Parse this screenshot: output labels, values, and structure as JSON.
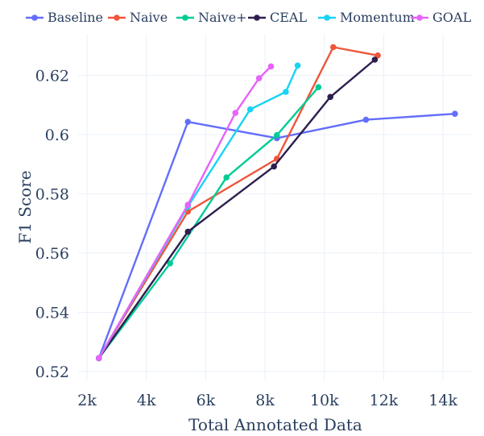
{
  "chart_data": {
    "type": "line",
    "title": "",
    "xlabel": "Total Annotated Data",
    "ylabel": "F1 Score",
    "xlim": [
      1700,
      15000
    ],
    "ylim": [
      0.517,
      0.634
    ],
    "x_ticks": [
      2000,
      4000,
      6000,
      8000,
      10000,
      12000,
      14000
    ],
    "x_tick_labels": [
      "2k",
      "4k",
      "6k",
      "8k",
      "10k",
      "12k",
      "14k"
    ],
    "y_ticks": [
      0.52,
      0.54,
      0.56,
      0.58,
      0.6,
      0.62
    ],
    "y_tick_labels": [
      "0.52",
      "0.54",
      "0.56",
      "0.58",
      "0.6",
      "0.62"
    ],
    "grid": true,
    "legend_position": "top",
    "series": [
      {
        "name": "Baseline",
        "color": "#636efa",
        "points": [
          [
            2400,
            0.5245
          ],
          [
            5400,
            0.6043
          ],
          [
            8400,
            0.5988
          ],
          [
            11400,
            0.605
          ],
          [
            14400,
            0.607
          ]
        ]
      },
      {
        "name": "Naive",
        "color": "#ef553b",
        "points": [
          [
            2400,
            0.5245
          ],
          [
            5400,
            0.574
          ],
          [
            8400,
            0.5918
          ],
          [
            10300,
            0.6295
          ],
          [
            11800,
            0.6267
          ]
        ]
      },
      {
        "name": "Naive+",
        "color": "#00cc96",
        "points": [
          [
            2400,
            0.5245
          ],
          [
            4800,
            0.5565
          ],
          [
            6700,
            0.5855
          ],
          [
            8400,
            0.5998
          ],
          [
            9800,
            0.616
          ]
        ]
      },
      {
        "name": "CEAL",
        "color": "#2e1e4f",
        "points": [
          [
            2400,
            0.5245
          ],
          [
            5400,
            0.5672
          ],
          [
            8300,
            0.5892
          ],
          [
            10200,
            0.6127
          ],
          [
            11700,
            0.6253
          ]
        ]
      },
      {
        "name": "Momentum",
        "color": "#19d3f3",
        "points": [
          [
            2400,
            0.5245
          ],
          [
            5400,
            0.5757
          ],
          [
            7500,
            0.6085
          ],
          [
            8700,
            0.6144
          ],
          [
            9100,
            0.6233
          ]
        ]
      },
      {
        "name": "GOAL",
        "color": "#e763fa",
        "points": [
          [
            2400,
            0.5245
          ],
          [
            5400,
            0.5763
          ],
          [
            7000,
            0.6073
          ],
          [
            7800,
            0.619
          ],
          [
            8200,
            0.623
          ]
        ]
      }
    ]
  }
}
